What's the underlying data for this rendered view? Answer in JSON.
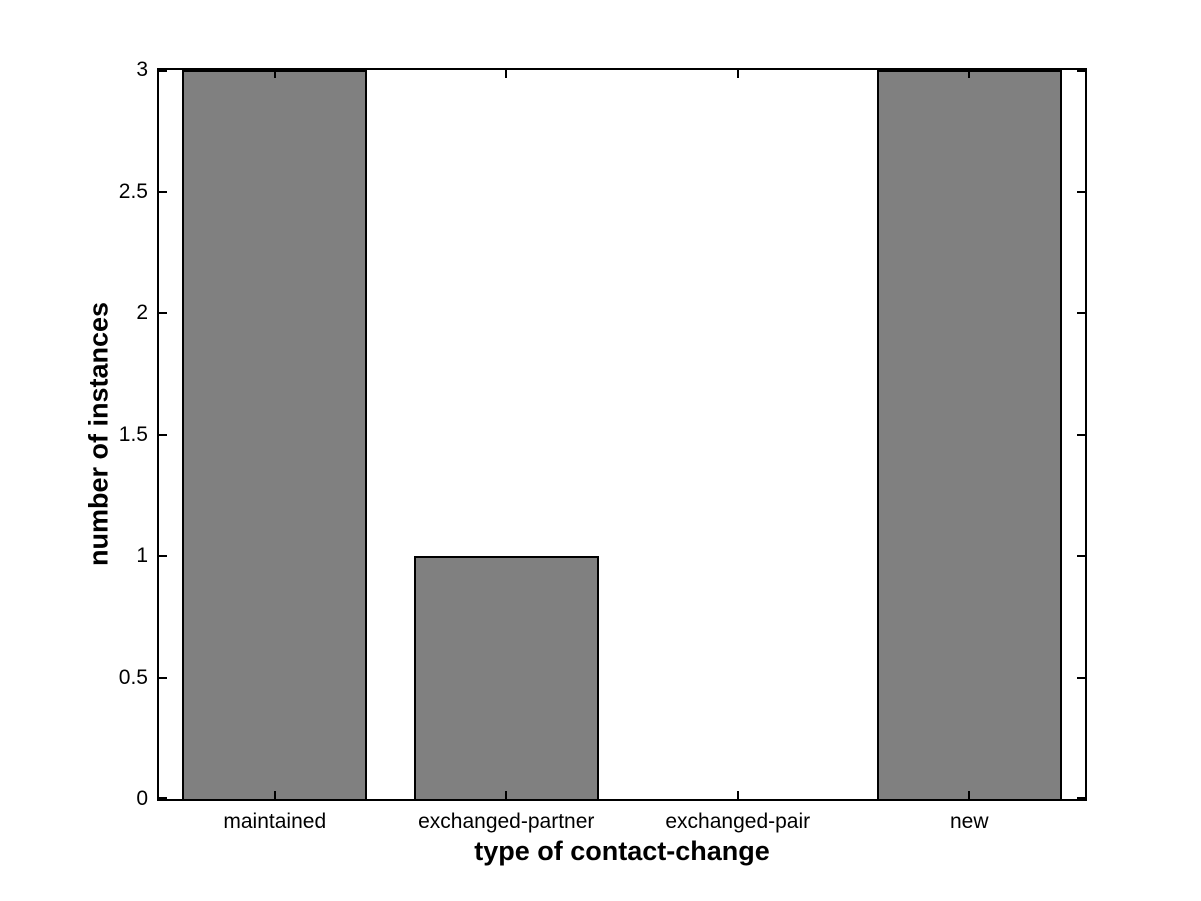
{
  "chart_data": {
    "type": "bar",
    "title": "",
    "xlabel": "type of contact-change",
    "ylabel": "number of instances",
    "categories": [
      "maintained",
      "exchanged-partner",
      "exchanged-pair",
      "new"
    ],
    "values": [
      3,
      1,
      0,
      3
    ],
    "ylim": [
      0,
      3
    ],
    "yticks": [
      0,
      0.5,
      1,
      1.5,
      2,
      2.5,
      3
    ],
    "ytick_labels": [
      "0",
      "0.5",
      "1",
      "1.5",
      "2",
      "2.5",
      "3"
    ],
    "bar_width_fraction": 0.8,
    "bar_color": "#808080",
    "bar_edge_color": "#000000",
    "axis_color": "#000000",
    "text_color": "#000000",
    "background_color": "#ffffff",
    "grid": false,
    "legend": "none",
    "tick_direction": "in",
    "box": true
  }
}
